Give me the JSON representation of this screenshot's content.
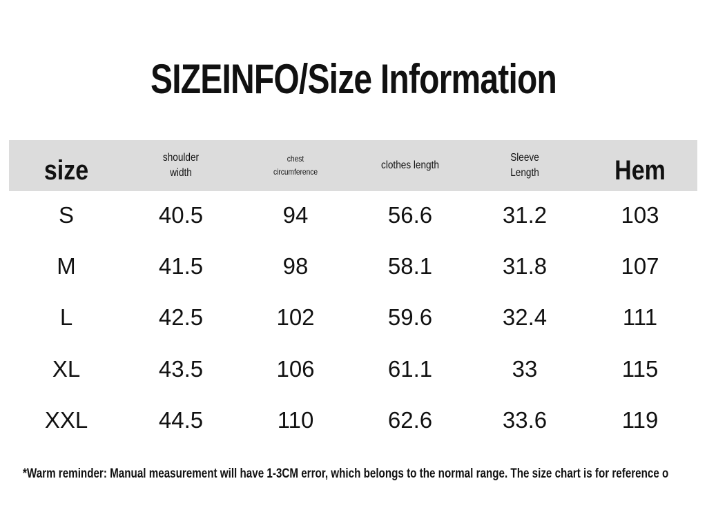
{
  "title": "SIZEINFO/Size Information",
  "table": {
    "headers": [
      "size",
      "shoulder width",
      "chest circumference",
      "clothes length",
      "Sleeve Length",
      "Hem"
    ],
    "rows": [
      [
        "S",
        40.5,
        94,
        56.6,
        31.2,
        103
      ],
      [
        "M",
        41.5,
        98,
        58.1,
        31.8,
        107
      ],
      [
        "L",
        42.5,
        102,
        59.6,
        32.4,
        111
      ],
      [
        "XL",
        43.5,
        106,
        61.1,
        33,
        115
      ],
      [
        "XXL",
        44.5,
        110,
        62.6,
        33.6,
        119
      ]
    ]
  },
  "footnote": "*Warm reminder: Manual measurement will have 1-3CM error, which belongs to the normal range. The size chart is for reference o"
}
